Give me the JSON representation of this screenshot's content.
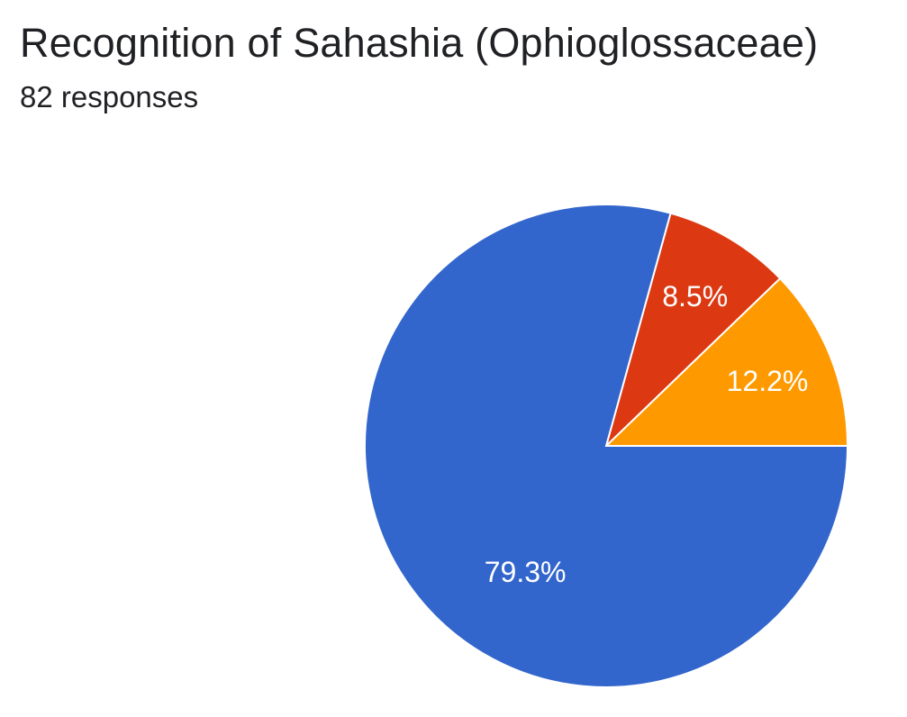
{
  "header": {
    "title": "Recognition of Sahashia (Ophioglossaceae)",
    "subtitle": "82 responses"
  },
  "chart_data": {
    "type": "pie",
    "title": "Recognition of Sahashia (Ophioglossaceae)",
    "subtitle": "82 responses",
    "start": "3 o'clock, counter-clockwise",
    "slices": [
      {
        "value": 12.2,
        "label": "12.2%",
        "color": "#ff9900"
      },
      {
        "value": 8.5,
        "label": "8.5%",
        "color": "#dc3912"
      },
      {
        "value": 79.3,
        "label": "79.3%",
        "color": "#3366cc"
      }
    ]
  }
}
